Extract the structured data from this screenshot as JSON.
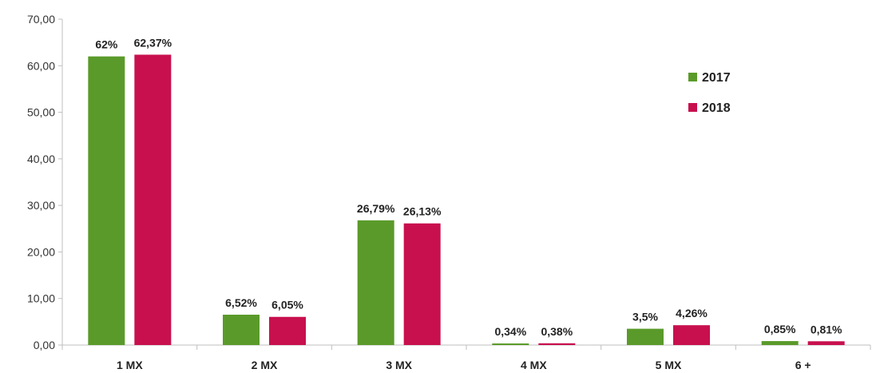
{
  "chart_data": {
    "type": "bar",
    "title": "",
    "xlabel": "",
    "ylabel": "",
    "categories": [
      "1 MX",
      "2 MX",
      "3 MX",
      "4 MX",
      "5 MX",
      "6 +"
    ],
    "series": [
      {
        "name": "2017",
        "color": "#5a9a2a",
        "values": [
          62,
          6.52,
          26.79,
          0.34,
          3.5,
          0.85
        ],
        "labels": [
          "62%",
          "6,52%",
          "26,79%",
          "0,34%",
          "3,5%",
          "0,85%"
        ]
      },
      {
        "name": "2018",
        "color": "#c8104e",
        "values": [
          62.37,
          6.05,
          26.13,
          0.38,
          4.26,
          0.81
        ],
        "labels": [
          "62,37%",
          "6,05%",
          "26,13%",
          "0,38%",
          "4,26%",
          "0,81%"
        ]
      }
    ],
    "ylim": [
      0,
      70
    ],
    "yticks": [
      0,
      10,
      20,
      30,
      40,
      50,
      60,
      70
    ],
    "ytick_labels": [
      "0,00",
      "10,00",
      "20,00",
      "30,00",
      "40,00",
      "50,00",
      "60,00",
      "70,00"
    ],
    "grid": false,
    "legend_position": "top-right"
  }
}
